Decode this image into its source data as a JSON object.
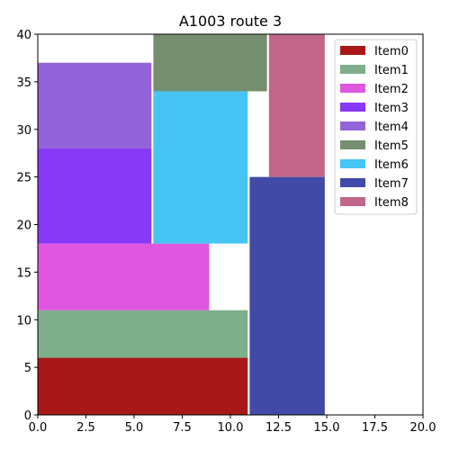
{
  "chart_data": {
    "type": "bar",
    "title": "A1003 route 3",
    "xlabel": "",
    "ylabel": "",
    "xlim": [
      0,
      20
    ],
    "ylim": [
      0,
      40
    ],
    "xticks": [
      "0.0",
      "2.5",
      "5.0",
      "7.5",
      "10.0",
      "12.5",
      "15.0",
      "17.5",
      "20.0"
    ],
    "yticks": [
      "0",
      "5",
      "10",
      "15",
      "20",
      "25",
      "30",
      "35",
      "40"
    ],
    "grid": false,
    "legend_position": "top-right",
    "items": [
      {
        "name": "Item0",
        "color": "#a91818",
        "x": 0,
        "y": 0,
        "w": 10.9,
        "h": 6
      },
      {
        "name": "Item1",
        "color": "#7fae8b",
        "x": 0,
        "y": 6,
        "w": 10.9,
        "h": 5
      },
      {
        "name": "Item2",
        "color": "#e057df",
        "x": 0,
        "y": 11,
        "w": 8.9,
        "h": 7
      },
      {
        "name": "Item3",
        "color": "#8639f6",
        "x": 0,
        "y": 18,
        "w": 5.9,
        "h": 10
      },
      {
        "name": "Item4",
        "color": "#9263d9",
        "x": 0,
        "y": 28,
        "w": 5.9,
        "h": 9
      },
      {
        "name": "Item5",
        "color": "#758e6f",
        "x": 6,
        "y": 34,
        "w": 5.9,
        "h": 6
      },
      {
        "name": "Item6",
        "color": "#46c5f4",
        "x": 6,
        "y": 18,
        "w": 4.9,
        "h": 16
      },
      {
        "name": "Item7",
        "color": "#414aa6",
        "x": 11,
        "y": 0,
        "w": 3.9,
        "h": 25
      },
      {
        "name": "Item8",
        "color": "#c16689",
        "x": 12,
        "y": 25,
        "w": 2.9,
        "h": 15
      }
    ]
  }
}
